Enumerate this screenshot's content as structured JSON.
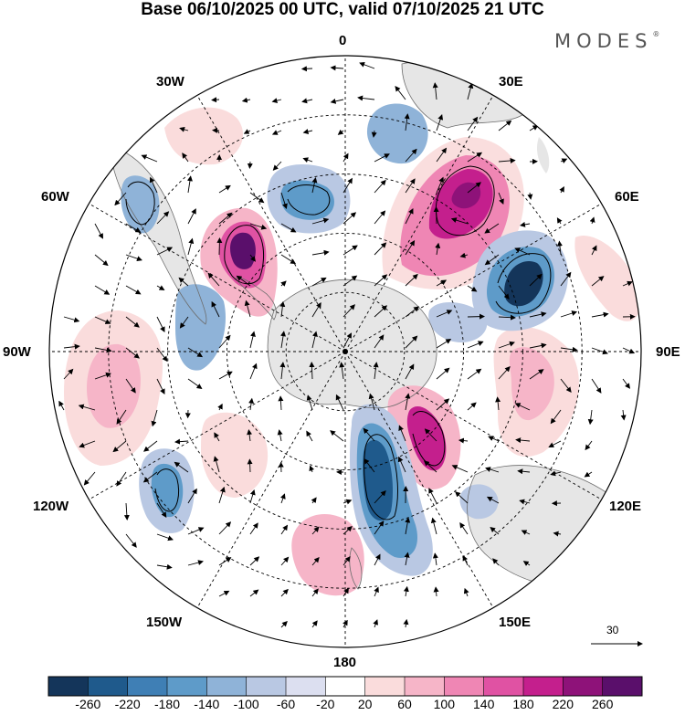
{
  "title": "Base 06/10/2025 00 UTC, valid 07/10/2025 21 UTC",
  "logo": "MODES",
  "logo_mark": "®",
  "longitude_labels": {
    "lon_0": "0",
    "lon_30e": "30E",
    "lon_60e": "60E",
    "lon_90e": "90E",
    "lon_120e": "120E",
    "lon_150e": "150E",
    "lon_180": "180",
    "lon_150w": "150W",
    "lon_120w": "120W",
    "lon_90w": "90W",
    "lon_60w": "60W",
    "lon_30w": "30W"
  },
  "reference_vector": "30",
  "colorbar": {
    "ticks": [
      "-260",
      "-220",
      "-180",
      "-140",
      "-100",
      "-60",
      "-20",
      "20",
      "60",
      "100",
      "140",
      "180",
      "220",
      "260"
    ],
    "colors": [
      "#14355a",
      "#1f5a8c",
      "#3f7fb5",
      "#5e9bc9",
      "#8fb3d8",
      "#b9c8e3",
      "#dcdff0",
      "#ffffff",
      "#fadcdc",
      "#f6b5c8",
      "#ef86b4",
      "#e052a3",
      "#c41f8d",
      "#8e1279",
      "#5a0f6b"
    ]
  },
  "colors": {
    "land": "#e6e6e6",
    "coast": "#6d6d6d",
    "grid": "#000000"
  }
}
